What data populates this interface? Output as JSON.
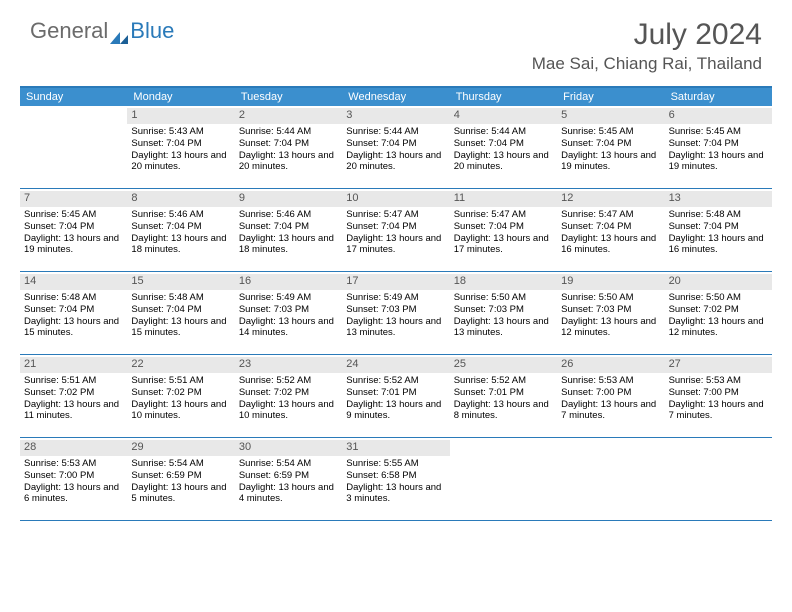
{
  "brand": {
    "part1": "General",
    "part2": "Blue"
  },
  "title": "July 2024",
  "location": "Mae Sai, Chiang Rai, Thailand",
  "colors": {
    "header_bg": "#3b8fce",
    "border": "#2a7ab9",
    "daynum_bg": "#e8e8e8",
    "text": "#000000",
    "title_color": "#555555"
  },
  "day_names": [
    "Sunday",
    "Monday",
    "Tuesday",
    "Wednesday",
    "Thursday",
    "Friday",
    "Saturday"
  ],
  "weeks": [
    [
      {
        "n": "",
        "sr": "",
        "ss": "",
        "dl": ""
      },
      {
        "n": "1",
        "sr": "Sunrise: 5:43 AM",
        "ss": "Sunset: 7:04 PM",
        "dl": "Daylight: 13 hours and 20 minutes."
      },
      {
        "n": "2",
        "sr": "Sunrise: 5:44 AM",
        "ss": "Sunset: 7:04 PM",
        "dl": "Daylight: 13 hours and 20 minutes."
      },
      {
        "n": "3",
        "sr": "Sunrise: 5:44 AM",
        "ss": "Sunset: 7:04 PM",
        "dl": "Daylight: 13 hours and 20 minutes."
      },
      {
        "n": "4",
        "sr": "Sunrise: 5:44 AM",
        "ss": "Sunset: 7:04 PM",
        "dl": "Daylight: 13 hours and 20 minutes."
      },
      {
        "n": "5",
        "sr": "Sunrise: 5:45 AM",
        "ss": "Sunset: 7:04 PM",
        "dl": "Daylight: 13 hours and 19 minutes."
      },
      {
        "n": "6",
        "sr": "Sunrise: 5:45 AM",
        "ss": "Sunset: 7:04 PM",
        "dl": "Daylight: 13 hours and 19 minutes."
      }
    ],
    [
      {
        "n": "7",
        "sr": "Sunrise: 5:45 AM",
        "ss": "Sunset: 7:04 PM",
        "dl": "Daylight: 13 hours and 19 minutes."
      },
      {
        "n": "8",
        "sr": "Sunrise: 5:46 AM",
        "ss": "Sunset: 7:04 PM",
        "dl": "Daylight: 13 hours and 18 minutes."
      },
      {
        "n": "9",
        "sr": "Sunrise: 5:46 AM",
        "ss": "Sunset: 7:04 PM",
        "dl": "Daylight: 13 hours and 18 minutes."
      },
      {
        "n": "10",
        "sr": "Sunrise: 5:47 AM",
        "ss": "Sunset: 7:04 PM",
        "dl": "Daylight: 13 hours and 17 minutes."
      },
      {
        "n": "11",
        "sr": "Sunrise: 5:47 AM",
        "ss": "Sunset: 7:04 PM",
        "dl": "Daylight: 13 hours and 17 minutes."
      },
      {
        "n": "12",
        "sr": "Sunrise: 5:47 AM",
        "ss": "Sunset: 7:04 PM",
        "dl": "Daylight: 13 hours and 16 minutes."
      },
      {
        "n": "13",
        "sr": "Sunrise: 5:48 AM",
        "ss": "Sunset: 7:04 PM",
        "dl": "Daylight: 13 hours and 16 minutes."
      }
    ],
    [
      {
        "n": "14",
        "sr": "Sunrise: 5:48 AM",
        "ss": "Sunset: 7:04 PM",
        "dl": "Daylight: 13 hours and 15 minutes."
      },
      {
        "n": "15",
        "sr": "Sunrise: 5:48 AM",
        "ss": "Sunset: 7:04 PM",
        "dl": "Daylight: 13 hours and 15 minutes."
      },
      {
        "n": "16",
        "sr": "Sunrise: 5:49 AM",
        "ss": "Sunset: 7:03 PM",
        "dl": "Daylight: 13 hours and 14 minutes."
      },
      {
        "n": "17",
        "sr": "Sunrise: 5:49 AM",
        "ss": "Sunset: 7:03 PM",
        "dl": "Daylight: 13 hours and 13 minutes."
      },
      {
        "n": "18",
        "sr": "Sunrise: 5:50 AM",
        "ss": "Sunset: 7:03 PM",
        "dl": "Daylight: 13 hours and 13 minutes."
      },
      {
        "n": "19",
        "sr": "Sunrise: 5:50 AM",
        "ss": "Sunset: 7:03 PM",
        "dl": "Daylight: 13 hours and 12 minutes."
      },
      {
        "n": "20",
        "sr": "Sunrise: 5:50 AM",
        "ss": "Sunset: 7:02 PM",
        "dl": "Daylight: 13 hours and 12 minutes."
      }
    ],
    [
      {
        "n": "21",
        "sr": "Sunrise: 5:51 AM",
        "ss": "Sunset: 7:02 PM",
        "dl": "Daylight: 13 hours and 11 minutes."
      },
      {
        "n": "22",
        "sr": "Sunrise: 5:51 AM",
        "ss": "Sunset: 7:02 PM",
        "dl": "Daylight: 13 hours and 10 minutes."
      },
      {
        "n": "23",
        "sr": "Sunrise: 5:52 AM",
        "ss": "Sunset: 7:02 PM",
        "dl": "Daylight: 13 hours and 10 minutes."
      },
      {
        "n": "24",
        "sr": "Sunrise: 5:52 AM",
        "ss": "Sunset: 7:01 PM",
        "dl": "Daylight: 13 hours and 9 minutes."
      },
      {
        "n": "25",
        "sr": "Sunrise: 5:52 AM",
        "ss": "Sunset: 7:01 PM",
        "dl": "Daylight: 13 hours and 8 minutes."
      },
      {
        "n": "26",
        "sr": "Sunrise: 5:53 AM",
        "ss": "Sunset: 7:00 PM",
        "dl": "Daylight: 13 hours and 7 minutes."
      },
      {
        "n": "27",
        "sr": "Sunrise: 5:53 AM",
        "ss": "Sunset: 7:00 PM",
        "dl": "Daylight: 13 hours and 7 minutes."
      }
    ],
    [
      {
        "n": "28",
        "sr": "Sunrise: 5:53 AM",
        "ss": "Sunset: 7:00 PM",
        "dl": "Daylight: 13 hours and 6 minutes."
      },
      {
        "n": "29",
        "sr": "Sunrise: 5:54 AM",
        "ss": "Sunset: 6:59 PM",
        "dl": "Daylight: 13 hours and 5 minutes."
      },
      {
        "n": "30",
        "sr": "Sunrise: 5:54 AM",
        "ss": "Sunset: 6:59 PM",
        "dl": "Daylight: 13 hours and 4 minutes."
      },
      {
        "n": "31",
        "sr": "Sunrise: 5:55 AM",
        "ss": "Sunset: 6:58 PM",
        "dl": "Daylight: 13 hours and 3 minutes."
      },
      {
        "n": "",
        "sr": "",
        "ss": "",
        "dl": ""
      },
      {
        "n": "",
        "sr": "",
        "ss": "",
        "dl": ""
      },
      {
        "n": "",
        "sr": "",
        "ss": "",
        "dl": ""
      }
    ]
  ]
}
